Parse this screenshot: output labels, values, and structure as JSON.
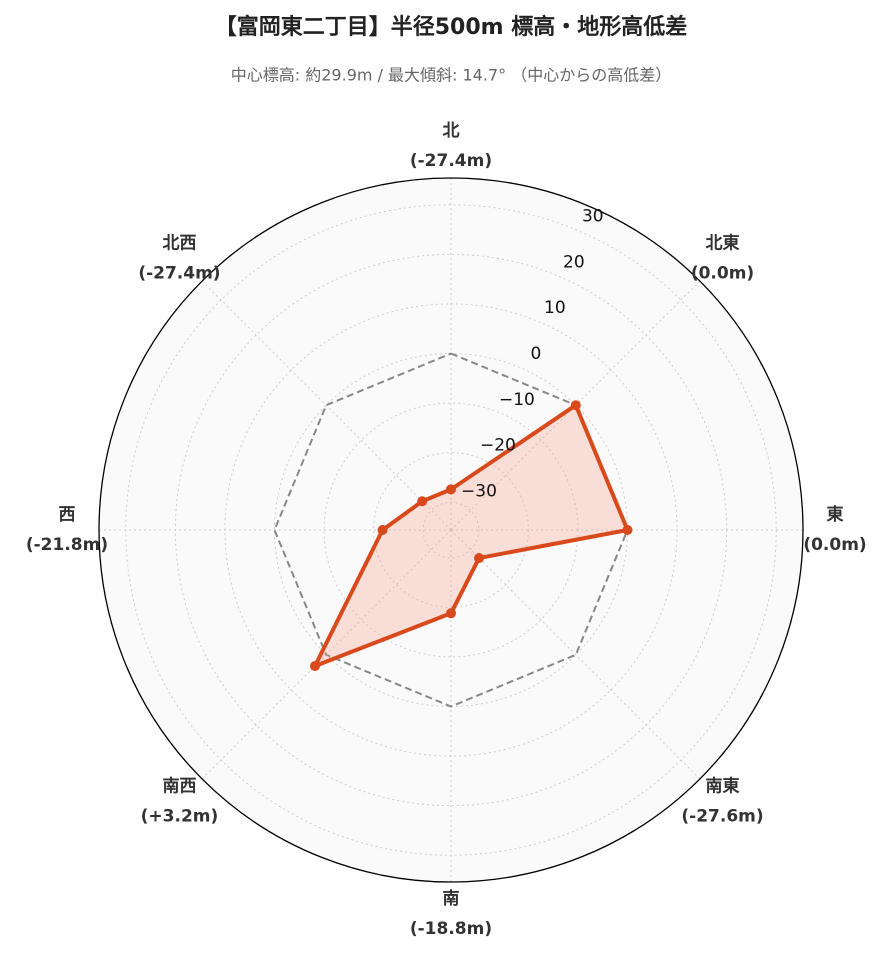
{
  "chart_data": {
    "type": "radar",
    "title": "【富岡東二丁目】半径500m 標高・地形高低差",
    "subtitle": "中心標高: 約29.9m / 最大傾斜: 14.7° （中心からの高低差）",
    "categories": [
      "北",
      "北東",
      "東",
      "南東",
      "南",
      "南西",
      "西",
      "北西"
    ],
    "values": [
      -27.4,
      0.0,
      0.0,
      -27.6,
      -18.8,
      3.2,
      -21.8,
      -27.4
    ],
    "value_labels": [
      "(-27.4m)",
      "(0.0m)",
      "(0.0m)",
      "(-27.6m)",
      "(-18.8m)",
      "(+3.2m)",
      "(-21.8m)",
      "(-27.4m)"
    ],
    "color": "#d84a1b",
    "fill_color": "#f9a08a",
    "reference_line": 0,
    "rlim": [
      -35.6,
      35.4
    ],
    "rticks": [
      {
        "value": -30,
        "label": "−30"
      },
      {
        "value": -20,
        "label": "−20"
      },
      {
        "value": -10,
        "label": "−10"
      },
      0,
      10,
      20,
      30
    ],
    "grid": true
  }
}
